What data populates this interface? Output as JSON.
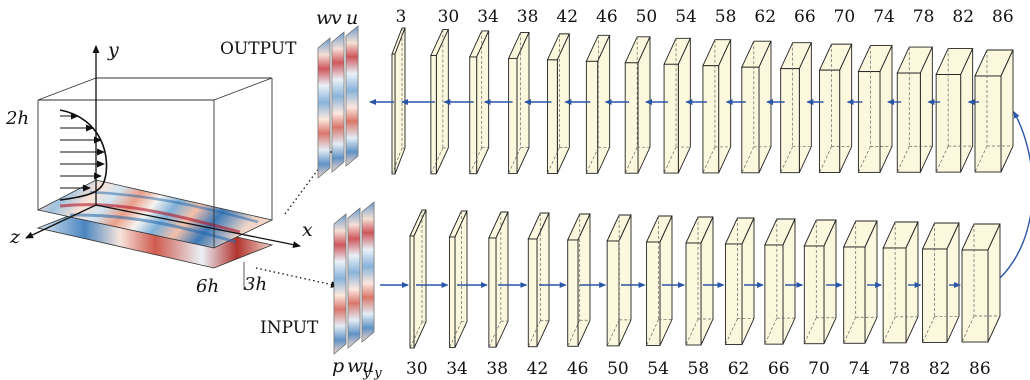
{
  "labels": {
    "output": "OUTPUT",
    "input": "INPUT"
  },
  "domain_axes": {
    "y": "y",
    "x": "x",
    "z": "z",
    "height": "2h",
    "length": "6h",
    "width": "3h"
  },
  "output_fields": [
    "w",
    "v",
    "u"
  ],
  "input_fields": [
    "p",
    "w",
    "u"
  ],
  "input_field_subscripts": [
    "",
    "y",
    "y"
  ],
  "encoder_layers": [
    30,
    34,
    38,
    42,
    46,
    50,
    54,
    58,
    62,
    66,
    70,
    74,
    78,
    82,
    86
  ],
  "decoder_layers": [
    3,
    30,
    34,
    38,
    42,
    46,
    50,
    54,
    58,
    62,
    66,
    70,
    74,
    78,
    82,
    86
  ],
  "colors": {
    "layer_fill": "#fbf8dd",
    "arrow": "#2a56a8",
    "flow_red": "#b2182b",
    "flow_blue": "#2166ac"
  }
}
